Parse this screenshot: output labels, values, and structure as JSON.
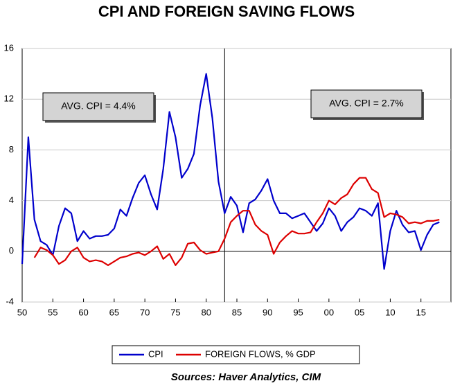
{
  "chart_data": {
    "type": "line",
    "title": "CPI AND FOREIGN SAVING FLOWS",
    "source": "Sources:  Haver Analytics, CIM",
    "annotations": [
      "AVG. CPI = 4.4%",
      "AVG. CPI = 2.7%"
    ],
    "vline": 1983,
    "x": [
      1950,
      1951,
      1952,
      1953,
      1954,
      1955,
      1956,
      1957,
      1958,
      1959,
      1960,
      1961,
      1962,
      1963,
      1964,
      1965,
      1966,
      1967,
      1968,
      1969,
      1970,
      1971,
      1972,
      1973,
      1974,
      1975,
      1976,
      1977,
      1978,
      1979,
      1980,
      1981,
      1982,
      1983,
      1984,
      1985,
      1986,
      1987,
      1988,
      1989,
      1990,
      1991,
      1992,
      1993,
      1994,
      1995,
      1996,
      1997,
      1998,
      1999,
      2000,
      2001,
      2002,
      2003,
      2004,
      2005,
      2006,
      2007,
      2008,
      2009,
      2010,
      2011,
      2012,
      2013,
      2014,
      2015,
      2016,
      2017,
      2018
    ],
    "series": [
      {
        "name": "CPI",
        "color": "#0000cc",
        "values": [
          -1.0,
          9.0,
          2.5,
          0.8,
          0.5,
          -0.3,
          2.0,
          3.4,
          3.0,
          0.8,
          1.6,
          1.0,
          1.2,
          1.2,
          1.3,
          1.8,
          3.3,
          2.8,
          4.2,
          5.4,
          6.0,
          4.5,
          3.3,
          6.5,
          11.0,
          9.0,
          5.8,
          6.5,
          7.7,
          11.5,
          14.0,
          10.5,
          5.5,
          3.0,
          4.3,
          3.6,
          1.5,
          3.8,
          4.1,
          4.8,
          5.7,
          4.0,
          3.0,
          3.0,
          2.6,
          2.8,
          3.0,
          2.3,
          1.6,
          2.2,
          3.4,
          2.8,
          1.6,
          2.3,
          2.7,
          3.4,
          3.2,
          2.8,
          3.8,
          -1.4,
          1.6,
          3.2,
          2.1,
          1.5,
          1.6,
          0.1,
          1.3,
          2.1,
          2.3
        ]
      },
      {
        "name": "FOREIGN FLOWS, % GDP",
        "color": "#dd0000",
        "values": [
          null,
          null,
          -0.5,
          0.3,
          0.1,
          -0.3,
          -1.0,
          -0.7,
          0.0,
          0.3,
          -0.5,
          -0.8,
          -0.7,
          -0.8,
          -1.1,
          -0.8,
          -0.5,
          -0.4,
          -0.2,
          -0.1,
          -0.3,
          0.0,
          0.4,
          -0.6,
          -0.2,
          -1.1,
          -0.5,
          0.6,
          0.7,
          0.1,
          -0.2,
          -0.1,
          0.0,
          1.0,
          2.3,
          2.8,
          3.2,
          3.2,
          2.1,
          1.6,
          1.3,
          -0.2,
          0.7,
          1.2,
          1.6,
          1.4,
          1.4,
          1.5,
          2.3,
          3.0,
          4.0,
          3.7,
          4.2,
          4.5,
          5.3,
          5.8,
          5.8,
          4.9,
          4.6,
          2.7,
          3.0,
          2.9,
          2.7,
          2.2,
          2.3,
          2.2,
          2.4,
          2.4,
          2.5
        ]
      }
    ],
    "xlim": [
      1950,
      2020
    ],
    "xticks": [
      {
        "value": 1950,
        "label": "50"
      },
      {
        "value": 1955,
        "label": "55"
      },
      {
        "value": 1960,
        "label": "60"
      },
      {
        "value": 1965,
        "label": "65"
      },
      {
        "value": 1970,
        "label": "70"
      },
      {
        "value": 1975,
        "label": "75"
      },
      {
        "value": 1980,
        "label": "80"
      },
      {
        "value": 1985,
        "label": "85"
      },
      {
        "value": 1990,
        "label": "90"
      },
      {
        "value": 1995,
        "label": "95"
      },
      {
        "value": 2000,
        "label": "00"
      },
      {
        "value": 2005,
        "label": "05"
      },
      {
        "value": 2010,
        "label": "10"
      },
      {
        "value": 2015,
        "label": "15"
      }
    ],
    "ylim": [
      -4,
      16
    ],
    "yticks": [
      -4,
      0,
      4,
      8,
      12,
      16
    ],
    "grid": true
  }
}
